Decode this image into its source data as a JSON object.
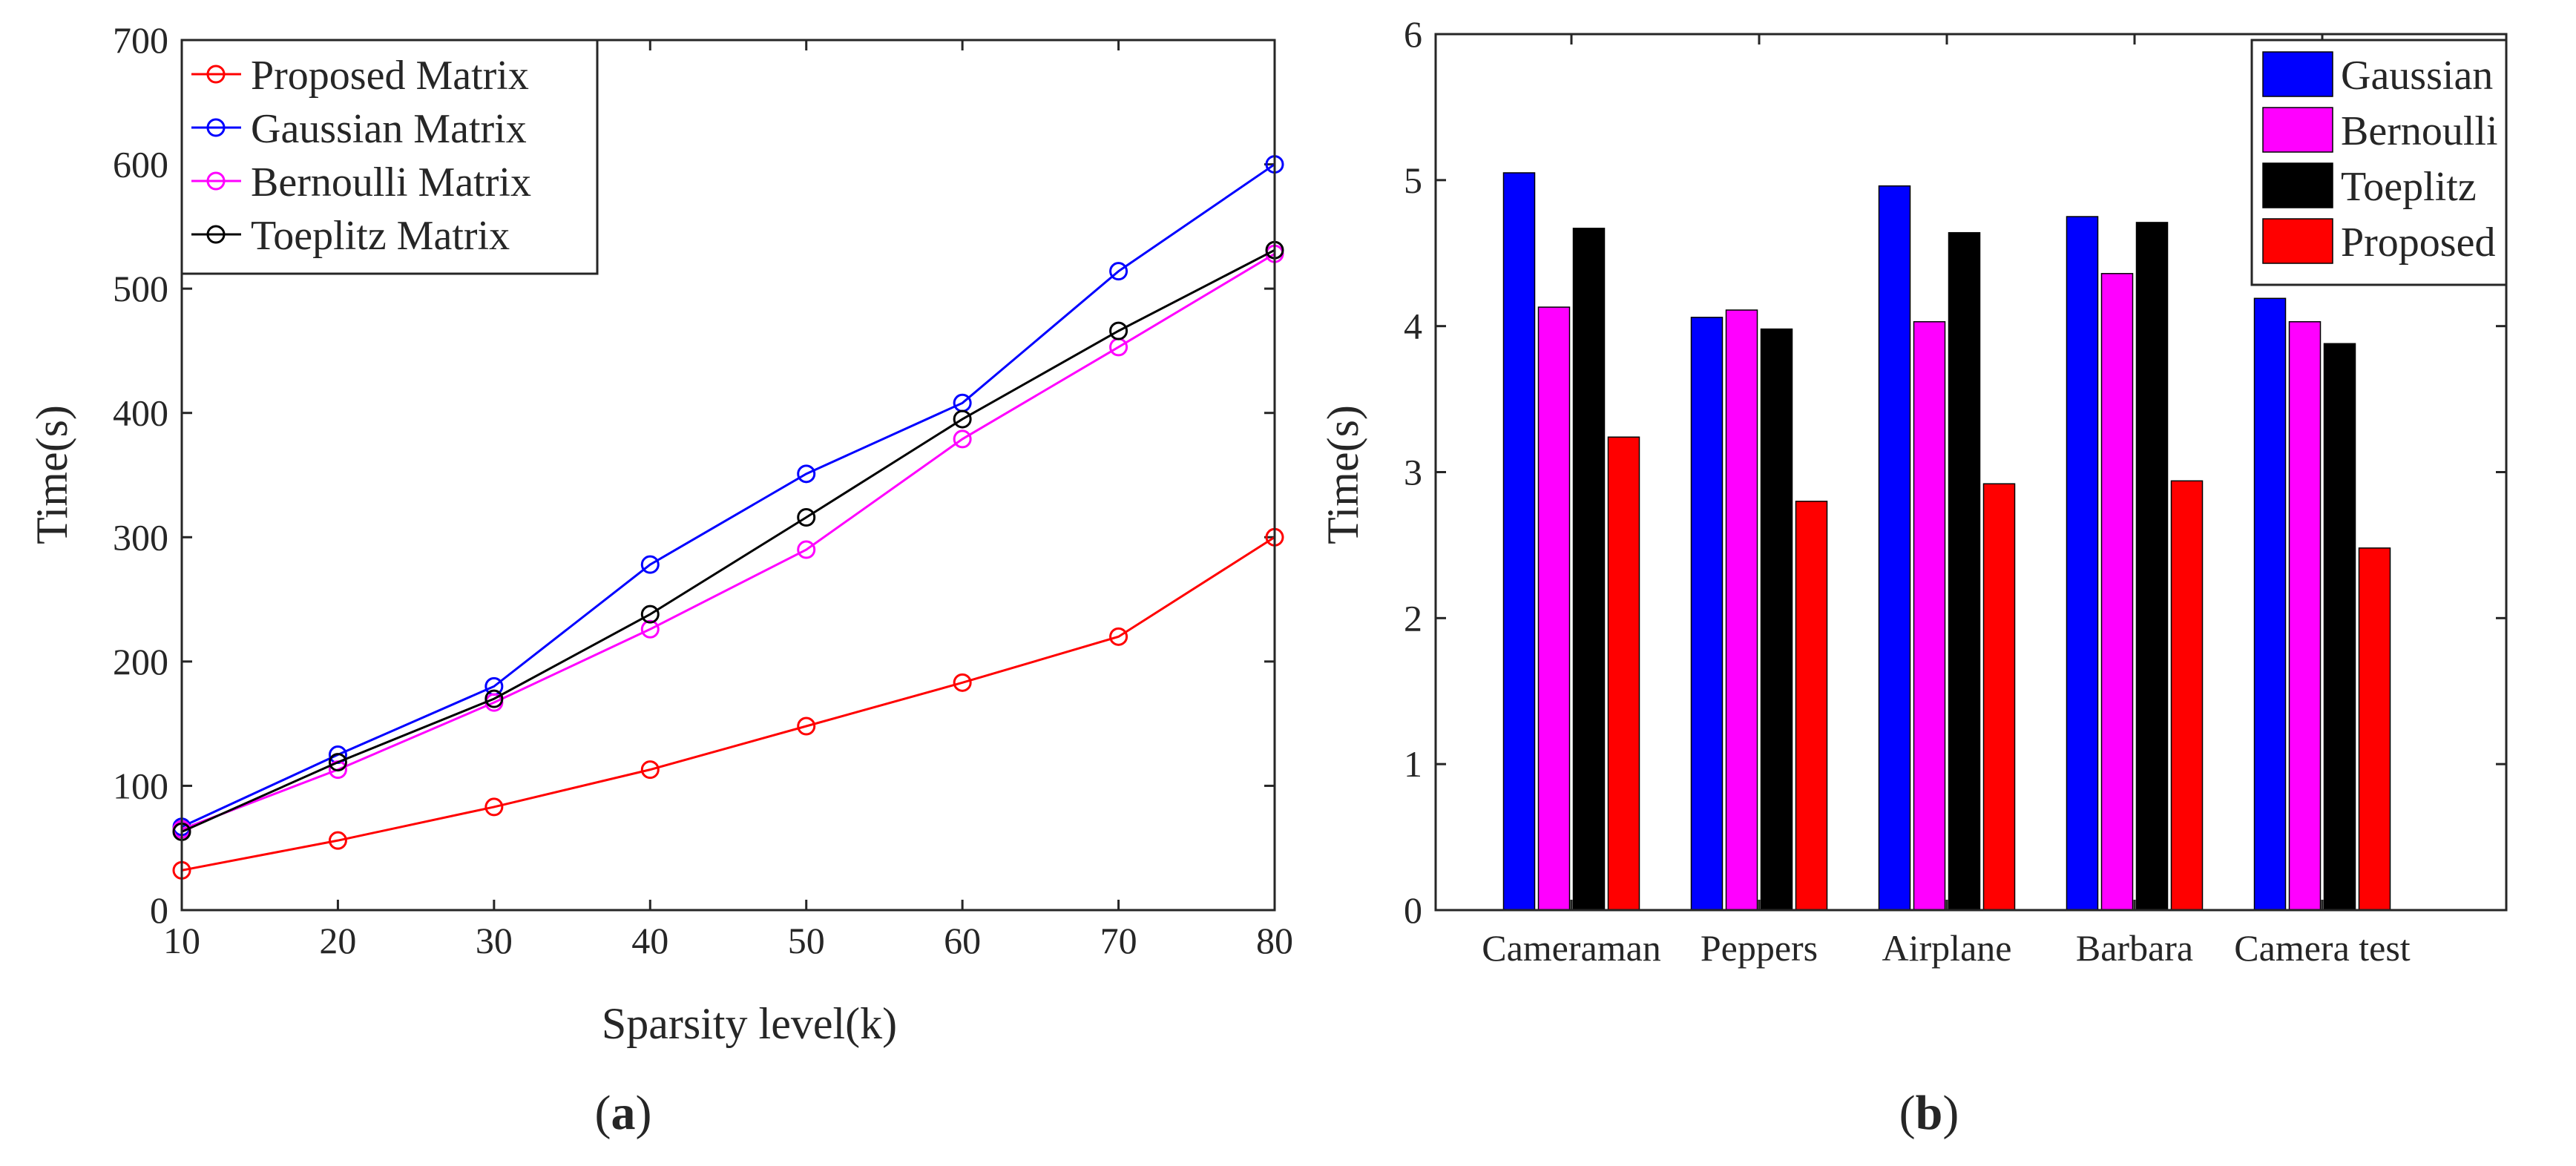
{
  "colors": {
    "proposed": "#ff0000",
    "gaussian": "#0000ff",
    "bernoulli": "#ff00ff",
    "toeplitz": "#000000",
    "axis": "#262626",
    "background": "#ffffff"
  },
  "panels": {
    "a": {
      "open": "(",
      "letter": "a",
      "close": ")"
    },
    "b": {
      "open": "(",
      "letter": "b",
      "close": ")"
    }
  },
  "chart_data": [
    {
      "id": "a",
      "type": "line",
      "title": "",
      "xlabel": "Sparsity level(k)",
      "ylabel": "Time(s)",
      "xlim": [
        10,
        80
      ],
      "ylim": [
        0,
        700
      ],
      "xticks": [
        10,
        20,
        30,
        40,
        50,
        60,
        70,
        80
      ],
      "yticks": [
        0,
        100,
        200,
        300,
        400,
        500,
        600,
        700
      ],
      "grid": false,
      "legend_position": "top-left",
      "x": [
        10,
        20,
        30,
        40,
        50,
        60,
        70,
        80
      ],
      "series": [
        {
          "name": "Proposed Matrix",
          "key": "proposed",
          "values": [
            32,
            56,
            83,
            113,
            148,
            183,
            220,
            300
          ]
        },
        {
          "name": "Gaussian Matrix",
          "key": "gaussian",
          "values": [
            67,
            125,
            180,
            278,
            351,
            408,
            514,
            600
          ]
        },
        {
          "name": "Bernoulli Matrix",
          "key": "bernoulli",
          "values": [
            65,
            113,
            167,
            226,
            290,
            379,
            453,
            528
          ]
        },
        {
          "name": "Toeplitz Matrix",
          "key": "toeplitz",
          "values": [
            63,
            119,
            170,
            238,
            316,
            395,
            466,
            531
          ]
        }
      ]
    },
    {
      "id": "b",
      "type": "bar",
      "title": "",
      "xlabel": "",
      "ylabel": "Time(s)",
      "ylim": [
        0,
        6
      ],
      "yticks": [
        0,
        1,
        2,
        3,
        4,
        5,
        6
      ],
      "grid": false,
      "legend_position": "top-right",
      "categories": [
        "Cameraman",
        "Peppers",
        "Airplane",
        "Barbara",
        "Camera test"
      ],
      "series": [
        {
          "name": "Gaussian",
          "key": "gaussian",
          "values": [
            5.05,
            4.06,
            4.96,
            4.75,
            4.19
          ]
        },
        {
          "name": "Bernoulli",
          "key": "bernoulli",
          "values": [
            4.13,
            4.11,
            4.03,
            4.36,
            4.03
          ]
        },
        {
          "name": "Toeplitz",
          "key": "toeplitz",
          "values": [
            4.67,
            3.98,
            4.64,
            4.71,
            3.88
          ]
        },
        {
          "name": "Proposed",
          "key": "proposed",
          "values": [
            3.24,
            2.8,
            2.92,
            2.94,
            2.48
          ]
        }
      ]
    }
  ]
}
